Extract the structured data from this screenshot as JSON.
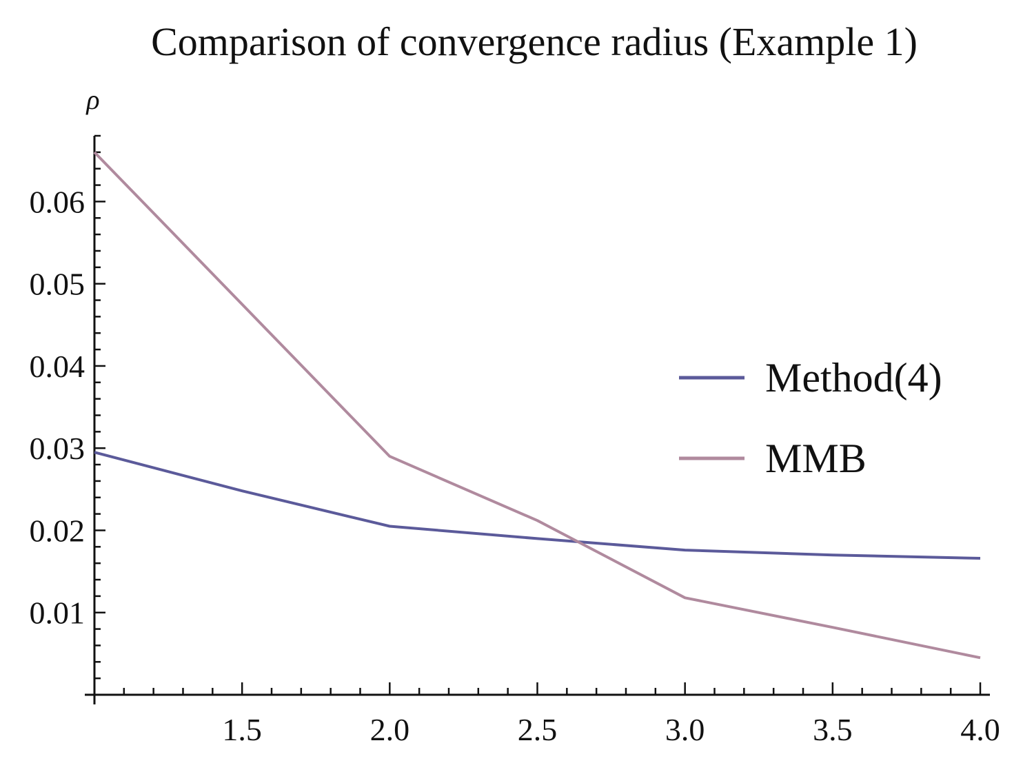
{
  "chart_data": {
    "type": "line",
    "title": "Comparison of convergence radius (Example 1)",
    "xlabel": "",
    "ylabel": "ρ",
    "xlim": [
      1.0,
      4.0
    ],
    "ylim": [
      0.0,
      0.068
    ],
    "x_ticks": [
      1.5,
      2.0,
      2.5,
      3.0,
      3.5,
      4.0
    ],
    "x_tick_labels": [
      "1.5",
      "2.0",
      "2.5",
      "3.0",
      "3.5",
      "4.0"
    ],
    "y_ticks": [
      0.01,
      0.02,
      0.03,
      0.04,
      0.05,
      0.06
    ],
    "y_tick_labels": [
      "0.01",
      "0.02",
      "0.03",
      "0.04",
      "0.05",
      "0.06"
    ],
    "grid": false,
    "legend_position": "right",
    "series": [
      {
        "name": "Method(4)",
        "color": "#5b5a9a",
        "x": [
          1.0,
          1.5,
          2.0,
          2.5,
          3.0,
          3.5,
          4.0
        ],
        "y": [
          0.0295,
          0.0248,
          0.0205,
          0.019,
          0.0176,
          0.017,
          0.0166
        ]
      },
      {
        "name": "MMB",
        "color": "#b08a9e",
        "x": [
          1.0,
          1.5,
          2.0,
          2.5,
          3.0,
          3.5,
          4.0
        ],
        "y": [
          0.066,
          0.0475,
          0.029,
          0.0212,
          0.0118,
          0.0082,
          0.0045
        ]
      }
    ]
  }
}
